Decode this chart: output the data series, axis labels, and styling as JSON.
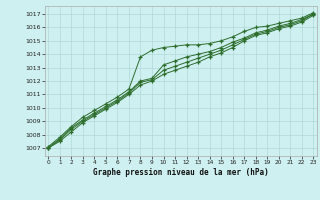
{
  "xlabel": "Graphe pression niveau de la mer (hPa)",
  "bg_color": "#cff0f0",
  "grid_color": "#b0d8d8",
  "line_color": "#2d6e2d",
  "x": [
    0,
    1,
    2,
    3,
    4,
    5,
    6,
    7,
    8,
    9,
    10,
    11,
    12,
    13,
    14,
    15,
    16,
    17,
    18,
    19,
    20,
    21,
    22,
    23
  ],
  "yticks": [
    1007,
    1008,
    1009,
    1010,
    1011,
    1012,
    1013,
    1014,
    1015,
    1016,
    1017
  ],
  "line1": [
    1007.1,
    1007.8,
    1008.6,
    1009.3,
    1009.8,
    1010.3,
    1010.8,
    1011.4,
    1013.8,
    1014.3,
    1014.5,
    1014.6,
    1014.7,
    1014.7,
    1014.8,
    1015.0,
    1015.3,
    1015.7,
    1016.0,
    1016.1,
    1016.3,
    1016.5,
    1016.7,
    1017.1
  ],
  "line2": [
    1007.0,
    1007.7,
    1008.5,
    1009.1,
    1009.6,
    1010.1,
    1010.6,
    1011.2,
    1012.0,
    1012.2,
    1013.2,
    1013.5,
    1013.8,
    1014.0,
    1014.2,
    1014.5,
    1014.9,
    1015.2,
    1015.6,
    1015.8,
    1016.1,
    1016.3,
    1016.6,
    1017.0
  ],
  "line3": [
    1007.0,
    1007.6,
    1008.4,
    1009.0,
    1009.5,
    1010.0,
    1010.5,
    1011.1,
    1011.9,
    1012.1,
    1012.8,
    1013.1,
    1013.4,
    1013.7,
    1014.0,
    1014.3,
    1014.7,
    1015.1,
    1015.5,
    1015.7,
    1016.0,
    1016.2,
    1016.5,
    1017.0
  ],
  "line4": [
    1007.0,
    1007.5,
    1008.2,
    1008.9,
    1009.4,
    1009.9,
    1010.4,
    1011.0,
    1011.7,
    1012.0,
    1012.5,
    1012.8,
    1013.1,
    1013.4,
    1013.8,
    1014.1,
    1014.5,
    1015.0,
    1015.4,
    1015.6,
    1015.9,
    1016.1,
    1016.4,
    1016.9
  ],
  "ylim_min": 1006.4,
  "ylim_max": 1017.6,
  "xlim_min": -0.3,
  "xlim_max": 23.3,
  "figwidth": 3.2,
  "figheight": 2.0,
  "dpi": 100
}
